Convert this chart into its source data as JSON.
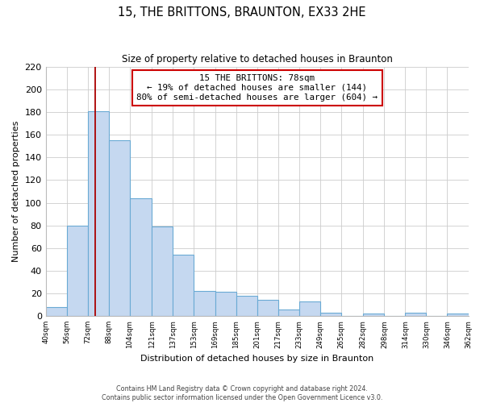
{
  "title": "15, THE BRITTONS, BRAUNTON, EX33 2HE",
  "subtitle": "Size of property relative to detached houses in Braunton",
  "xlabel": "Distribution of detached houses by size in Braunton",
  "ylabel": "Number of detached properties",
  "footnote1": "Contains HM Land Registry data © Crown copyright and database right 2024.",
  "footnote2": "Contains public sector information licensed under the Open Government Licence v3.0.",
  "bar_edges": [
    40,
    56,
    72,
    88,
    104,
    121,
    137,
    153,
    169,
    185,
    201,
    217,
    233,
    249,
    265,
    282,
    298,
    314,
    330,
    346,
    362
  ],
  "bar_heights": [
    8,
    80,
    181,
    155,
    104,
    79,
    54,
    22,
    21,
    18,
    14,
    6,
    13,
    3,
    0,
    2,
    0,
    3,
    0,
    2
  ],
  "bar_color": "#c5d8f0",
  "bar_edgecolor": "#6aaad4",
  "property_line_x": 78,
  "property_line_color": "#aa0000",
  "annotation_line1": "15 THE BRITTONS: 78sqm",
  "annotation_line2": "← 19% of detached houses are smaller (144)",
  "annotation_line3": "80% of semi-detached houses are larger (604) →",
  "annotation_box_facecolor": "white",
  "annotation_box_edgecolor": "#cc0000",
  "ylim": [
    0,
    220
  ],
  "yticks": [
    0,
    20,
    40,
    60,
    80,
    100,
    120,
    140,
    160,
    180,
    200,
    220
  ],
  "tick_labels": [
    "40sqm",
    "56sqm",
    "72sqm",
    "88sqm",
    "104sqm",
    "121sqm",
    "137sqm",
    "153sqm",
    "169sqm",
    "185sqm",
    "201sqm",
    "217sqm",
    "233sqm",
    "249sqm",
    "265sqm",
    "282sqm",
    "298sqm",
    "314sqm",
    "330sqm",
    "346sqm",
    "362sqm"
  ],
  "background_color": "#ffffff",
  "grid_color": "#cccccc"
}
